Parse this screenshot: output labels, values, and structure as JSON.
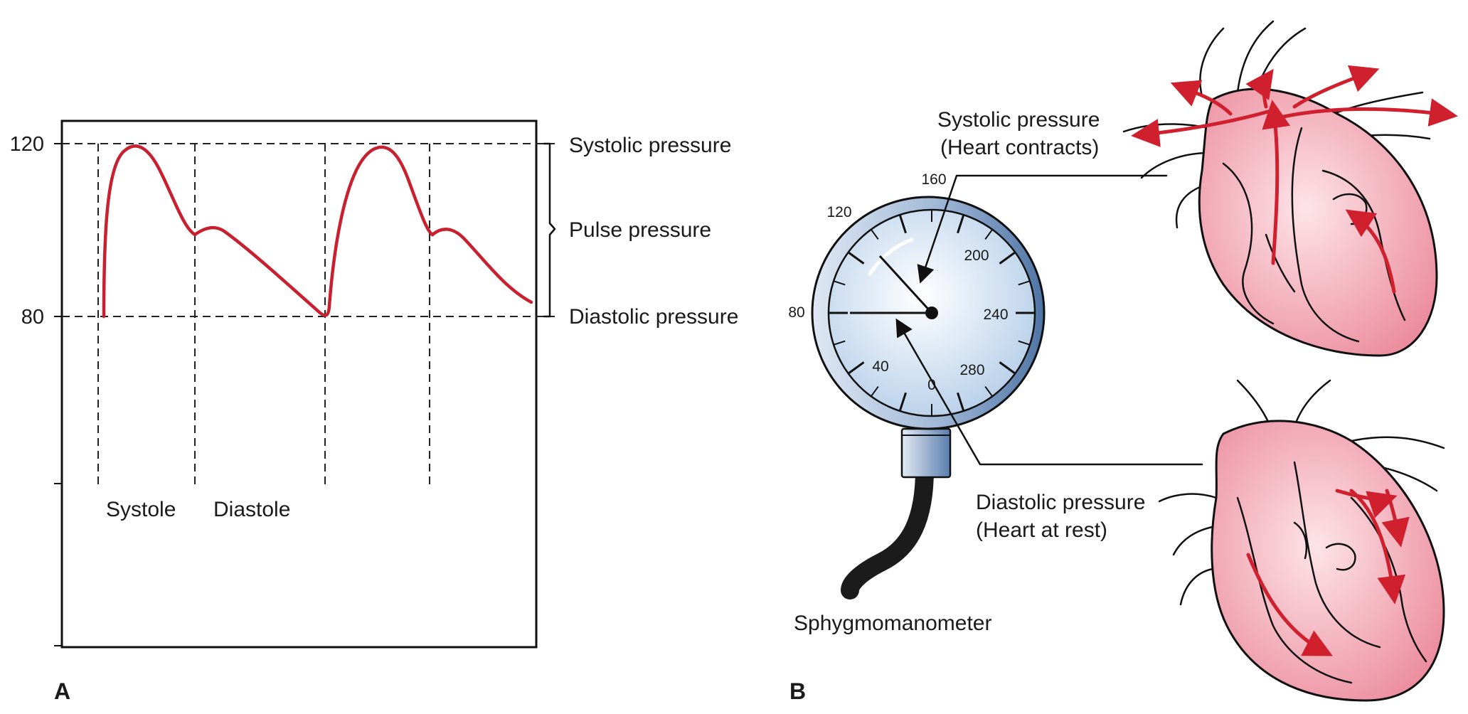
{
  "panels": {
    "a_label": "A",
    "b_label": "B"
  },
  "waveform": {
    "tick_high": "120",
    "tick_low": "80",
    "systolic_label": "Systolic pressure",
    "pulse_label": "Pulse pressure",
    "diastolic_label": "Diastolic pressure",
    "phase_systole": "Systole",
    "phase_diastole": "Diastole",
    "curve_color": "#c8202f"
  },
  "gauge": {
    "dial_numbers": [
      "0",
      "40",
      "80",
      "120",
      "160",
      "200",
      "240",
      "280"
    ],
    "systolic_callout_1": "Systolic pressure",
    "systolic_callout_2": "(Heart contracts)",
    "diastolic_callout_1": "Diastolic pressure",
    "diastolic_callout_2": "(Heart at rest)",
    "device_label": "Sphygmomanometer",
    "face_color": "#cfe0f0",
    "rim_color": "#6f8fb8"
  },
  "hearts": {
    "tissue_color": "#f2a7b4",
    "flow_arrow_color": "#d0202e"
  }
}
